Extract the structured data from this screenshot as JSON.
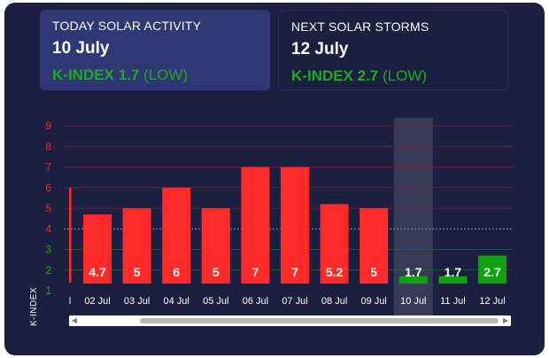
{
  "today": {
    "title": "TODAY SOLAR ACTIVITY",
    "date": "10 July",
    "kindex_value": "K-INDEX 1.7",
    "kindex_level": "(LOW)"
  },
  "next": {
    "title": "NEXT SOLAR STORMS",
    "date": "12 July",
    "kindex_value": "K-INDEX 2.7",
    "kindex_level": "(LOW)"
  },
  "colors": {
    "background": "#1b1f40",
    "bar_high": "#ff2b2b",
    "bar_low": "#10a010",
    "ytick_red": "#e03030",
    "ytick_green": "#1faa1f"
  },
  "scrollbar": {
    "left_icon": "arrow-left-icon",
    "right_icon": "arrow-right-icon",
    "thumb_position": 0.52
  },
  "chart_data": {
    "type": "bar",
    "ylabel": "K-INDEX",
    "ylim": [
      1,
      9
    ],
    "yticks": [
      1,
      2,
      3,
      4,
      5,
      6,
      7,
      8,
      9
    ],
    "grid": true,
    "threshold_line": 4,
    "highlighted_category": "10 Jul",
    "categories": [
      "02 Jul",
      "03 Jul",
      "04 Jul",
      "05 Jul",
      "06 Jul",
      "07 Jul",
      "08 Jul",
      "09 Jul",
      "10 Jul",
      "11 Jul",
      "12 Jul"
    ],
    "values": [
      4.7,
      5,
      6,
      5,
      7,
      7,
      5.2,
      5,
      1.7,
      1.7,
      2.7
    ],
    "labels": [
      "4.7",
      "5",
      "6",
      "5",
      "7",
      "7",
      "5.2",
      "5",
      "1.7",
      "1.7",
      "2.7"
    ],
    "partial_first_bar": {
      "category_label": "l",
      "value": 6
    }
  }
}
